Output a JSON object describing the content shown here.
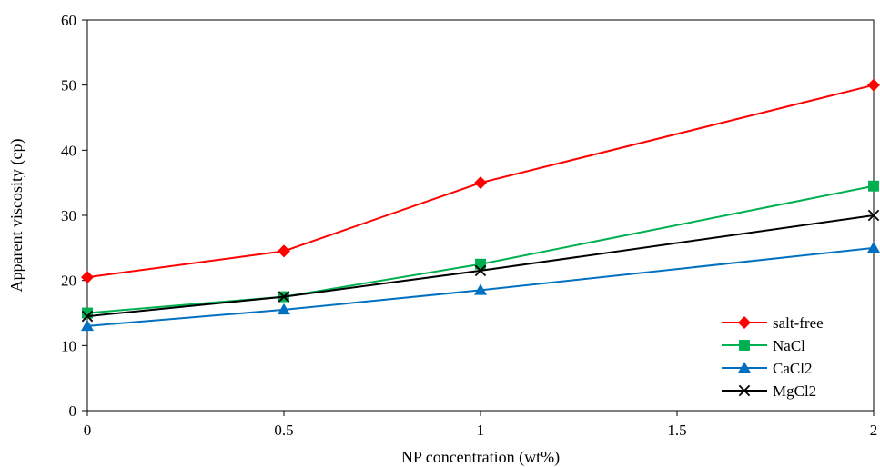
{
  "chart_data": {
    "type": "line",
    "title": "",
    "xlabel": "NP concentration (wt%)",
    "ylabel": "Apparent viscosity (cp)",
    "xlim": [
      0,
      2
    ],
    "ylim": [
      0,
      60
    ],
    "x_ticks": [
      0,
      0.5,
      1,
      1.5,
      2
    ],
    "y_ticks": [
      0,
      10,
      20,
      30,
      40,
      50,
      60
    ],
    "grid": false,
    "legend_position": "bottom-right",
    "x": [
      0,
      0.5,
      1,
      2
    ],
    "series": [
      {
        "name": "salt-free",
        "values": [
          20.5,
          24.5,
          35,
          50
        ],
        "color": "#ff0000",
        "marker": "diamond"
      },
      {
        "name": "NaCl",
        "values": [
          15,
          17.5,
          22.5,
          34.5
        ],
        "color": "#00b050",
        "marker": "square"
      },
      {
        "name": "CaCl2",
        "values": [
          13,
          15.5,
          18.5,
          25
        ],
        "color": "#0070c0",
        "marker": "triangle"
      },
      {
        "name": "MgCl2",
        "values": [
          14.5,
          17.5,
          21.5,
          30
        ],
        "color": "#000000",
        "marker": "x"
      }
    ]
  }
}
